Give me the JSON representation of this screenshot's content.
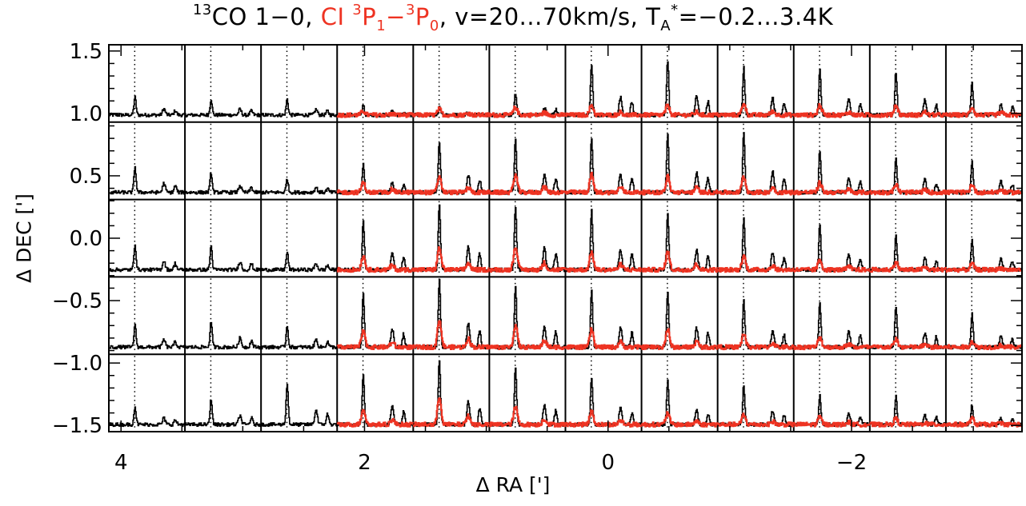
{
  "title": {
    "sup_13": "13",
    "part1": "CO 1−0, ",
    "ci_text": "CI ",
    "sup_3a": "3",
    "p1": "P",
    "sub_1": "1",
    "dash": "−",
    "sup_3b": "3",
    "p0": "P",
    "sub_0": "0",
    "part2": ", v=20...70km/s, T",
    "sub_A": "A",
    "sup_star": "*",
    "part3": "=−0.2...3.4K"
  },
  "colors": {
    "co13": "#000000",
    "ci": "#ee3322",
    "frame": "#000000"
  },
  "chart_data": {
    "type": "line",
    "title": "13CO 1−0, CI 3P1−3P0, v=20...70km/s, TA*=−0.2...3.4K",
    "xlabel": "Δ RA [']",
    "ylabel": "Δ DEC [']",
    "xlim": [
      4.1,
      -3.4
    ],
    "ylim": [
      -1.55,
      1.55
    ],
    "xticks": [
      4,
      2,
      0,
      -2
    ],
    "xtick_labels": [
      "4",
      "2",
      "0",
      "−2"
    ],
    "yticks": [
      1.5,
      1.0,
      0.5,
      0.0,
      -0.5,
      -1.0,
      -1.5
    ],
    "ytick_labels": [
      "1.5",
      "1.0",
      "0.5",
      "0.0",
      "−0.5",
      "−1.0",
      "−1.5"
    ],
    "grid_cols": 12,
    "grid_rows": 5,
    "spectrum_velocity_range": [
      20,
      70
    ],
    "spectrum_temperature_range": [
      -0.2,
      3.4
    ],
    "ci_first_column": 3,
    "series": [
      {
        "name": "13CO 1−0",
        "color": "#000000"
      },
      {
        "name": "CI 3P1−3P0",
        "color": "#ee3322"
      }
    ],
    "peak_co": [
      [
        0.9,
        0.8,
        0.8,
        0.5,
        0.4,
        1.1,
        2.6,
        2.8,
        2.4,
        2.3,
        2.2,
        1.6
      ],
      [
        1.3,
        1.0,
        0.7,
        1.4,
        2.6,
        2.7,
        2.8,
        2.9,
        3.0,
        2.1,
        1.8,
        1.6
      ],
      [
        1.3,
        1.2,
        0.9,
        2.5,
        3.3,
        3.2,
        3.0,
        2.9,
        2.6,
        2.3,
        1.7,
        1.5
      ],
      [
        1.1,
        1.3,
        1.1,
        2.7,
        3.4,
        3.1,
        2.9,
        2.8,
        2.4,
        2.3,
        2.1,
        1.7
      ],
      [
        0.9,
        1.3,
        2.1,
        2.6,
        3.3,
        2.9,
        2.4,
        2.2,
        2.0,
        1.5,
        1.4,
        1.0
      ]
    ],
    "peak_ci": [
      [
        0,
        0,
        0,
        0.2,
        0.3,
        0.4,
        0.5,
        0.5,
        0.6,
        0.5,
        0.5,
        0.4
      ],
      [
        0,
        0,
        0,
        0.5,
        0.8,
        0.9,
        0.9,
        0.8,
        0.8,
        0.5,
        0.4,
        0.4
      ],
      [
        0,
        0,
        0,
        0.7,
        1.1,
        1.2,
        0.9,
        0.9,
        0.7,
        0.5,
        0.4,
        0.3
      ],
      [
        0,
        0,
        0,
        0.8,
        1.4,
        1.1,
        0.9,
        0.9,
        0.7,
        0.5,
        0.4,
        0.3
      ],
      [
        0,
        0,
        0,
        0.8,
        1.4,
        0.9,
        0.7,
        0.6,
        0.5,
        0.4,
        0.3,
        0.3
      ]
    ]
  }
}
